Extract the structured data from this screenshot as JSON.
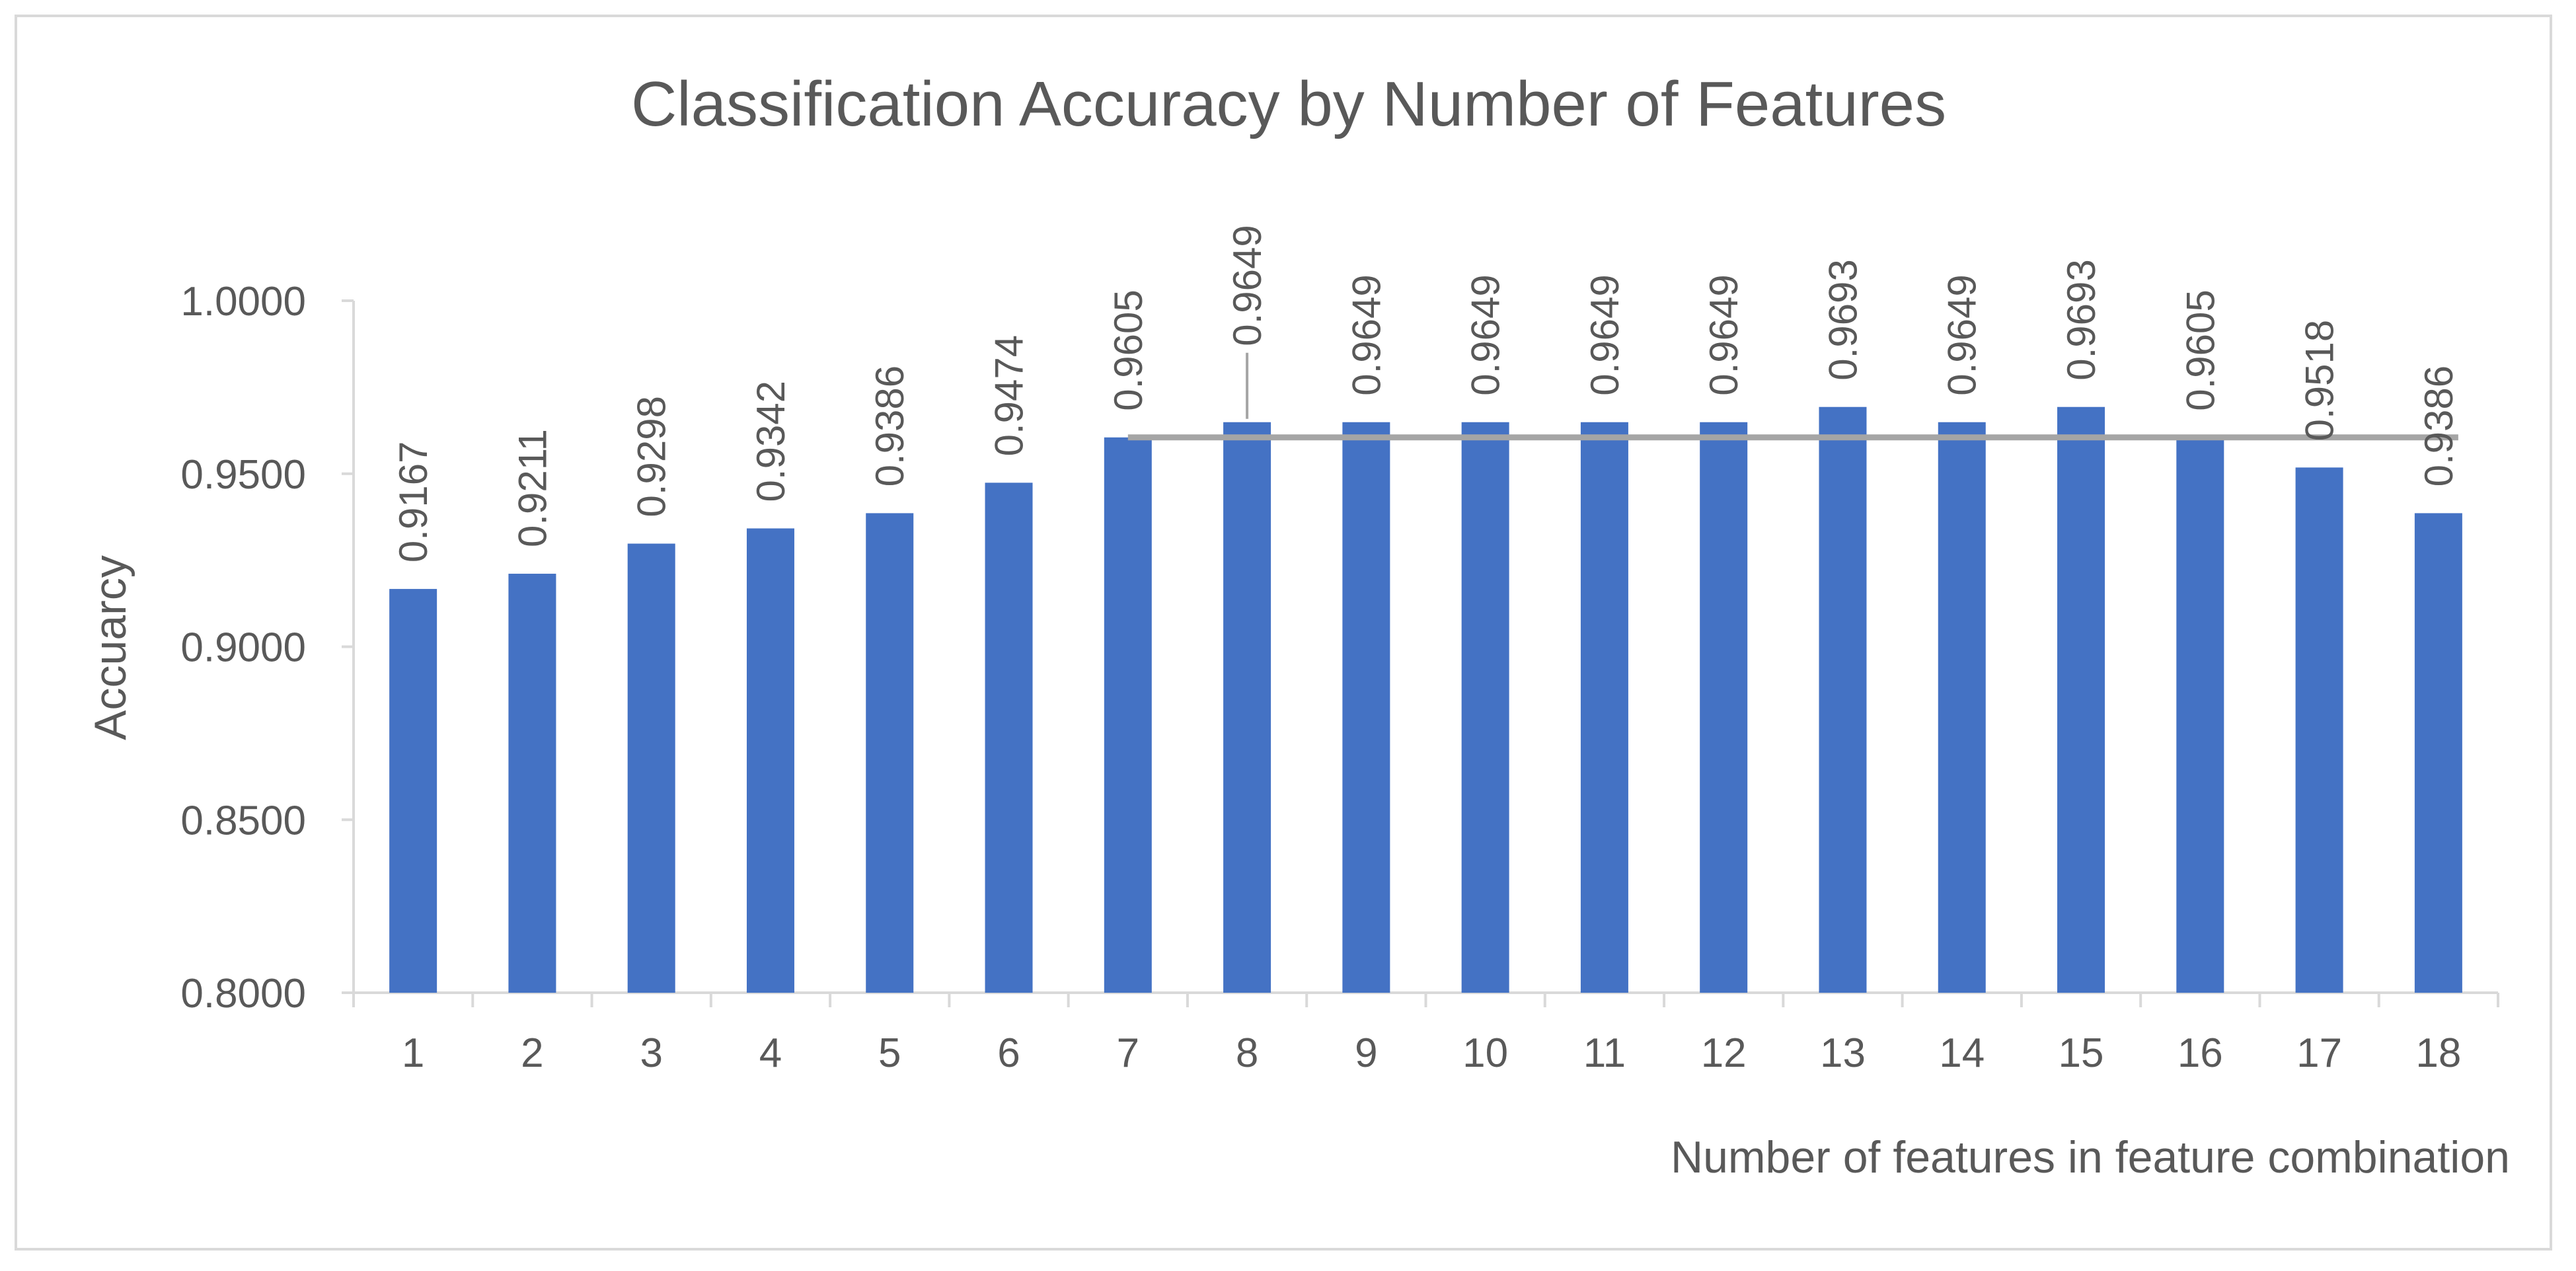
{
  "chart_data": {
    "type": "bar",
    "title": "Classification Accuracy by Number of Features",
    "xlabel": "Number of features in feature combination",
    "ylabel": "Accuarcy",
    "categories": [
      "1",
      "2",
      "3",
      "4",
      "5",
      "6",
      "7",
      "8",
      "9",
      "10",
      "11",
      "12",
      "13",
      "14",
      "15",
      "16",
      "17",
      "18"
    ],
    "values": [
      0.9167,
      0.9211,
      0.9298,
      0.9342,
      0.9386,
      0.9474,
      0.9605,
      0.9649,
      0.9649,
      0.9649,
      0.9649,
      0.9649,
      0.9693,
      0.9649,
      0.9693,
      0.9605,
      0.9518,
      0.9386
    ],
    "data_labels": [
      "0.9167",
      "0.9211",
      "0.9298",
      "0.9342",
      "0.9386",
      "0.9474",
      "0.9605",
      "0.9649",
      "0.9649",
      "0.9649",
      "0.9649",
      "0.9649",
      "0.9693",
      "0.9649",
      "0.9693",
      "0.9605",
      "0.9518",
      "0.9386"
    ],
    "ylim": [
      0.8,
      1.0
    ],
    "yticks": [
      0.8,
      0.85,
      0.9,
      0.95,
      1.0
    ],
    "ytick_labels": [
      "0.8000",
      "0.8500",
      "0.9000",
      "0.9500",
      "1.0000"
    ],
    "reference_line": {
      "value": 0.9605,
      "from_category": "7",
      "to_category": "18"
    },
    "grid": false,
    "legend": "none",
    "colors": {
      "bar": "#4472c4",
      "reference_line": "#a5a5a5",
      "axis": "#d9d9d9",
      "text": "#595959",
      "border": "#d9d9d9"
    }
  }
}
